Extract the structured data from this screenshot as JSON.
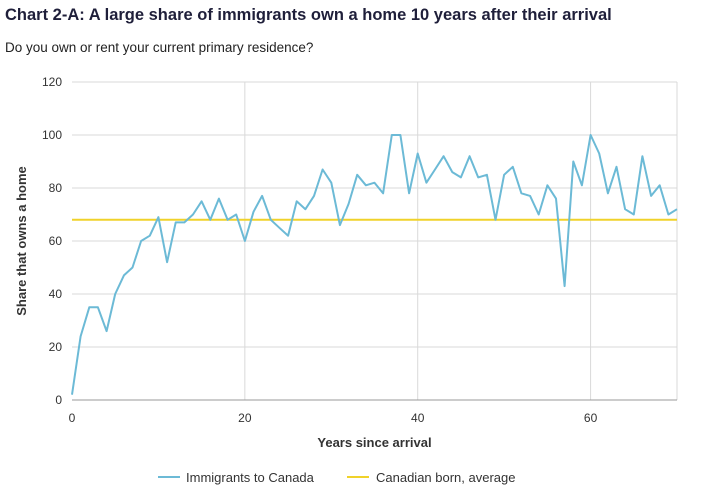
{
  "title": "Chart 2-A: A large share of immigrants own a home 10 years after their arrival",
  "subtitle": "Do you own or rent your current primary residence?",
  "colors": {
    "immigrants": "#6cbad6",
    "canadian": "#f0d22a",
    "grid": "#d9d9d9",
    "axis": "#999999"
  },
  "chart_data": {
    "type": "line",
    "xlabel": "Years since arrival",
    "ylabel": "Share that owns a home",
    "xlim": [
      0,
      70
    ],
    "ylim": [
      0,
      120
    ],
    "xticks": [
      "0",
      "20",
      "40",
      "60"
    ],
    "xtick_values": [
      0,
      20,
      40,
      60
    ],
    "yticks": [
      "0",
      "20",
      "40",
      "60",
      "80",
      "100",
      "120"
    ],
    "ytick_values": [
      0,
      20,
      40,
      60,
      80,
      100,
      120
    ],
    "grid": "vertical and horizontal",
    "legend_position": "bottom",
    "series": [
      {
        "name": "Immigrants to Canada",
        "color": "#6cbad6",
        "x": [
          0,
          1,
          2,
          3,
          4,
          5,
          6,
          7,
          8,
          9,
          10,
          11,
          12,
          13,
          14,
          15,
          16,
          17,
          18,
          19,
          20,
          21,
          22,
          23,
          24,
          25,
          26,
          27,
          28,
          29,
          30,
          31,
          32,
          33,
          34,
          35,
          36,
          37,
          38,
          39,
          40,
          41,
          42,
          43,
          44,
          45,
          46,
          47,
          48,
          49,
          50,
          51,
          52,
          53,
          54,
          55,
          56,
          57,
          58,
          59,
          60,
          61,
          62,
          63,
          64,
          65,
          66,
          67,
          68,
          69,
          70
        ],
        "values": [
          2,
          24,
          35,
          35,
          26,
          40,
          47,
          50,
          60,
          62,
          69,
          52,
          67,
          67,
          70,
          75,
          68,
          76,
          68,
          70,
          60,
          71,
          77,
          68,
          65,
          62,
          75,
          72,
          77,
          87,
          82,
          66,
          74,
          85,
          81,
          82,
          78,
          100,
          100,
          78,
          93,
          82,
          87,
          92,
          86,
          84,
          92,
          84,
          85,
          68,
          85,
          88,
          78,
          77,
          70,
          81,
          76,
          43,
          90,
          81,
          100,
          93,
          78,
          88,
          72,
          70,
          92,
          77,
          81,
          70,
          72
        ]
      },
      {
        "name": "Canadian born, average",
        "color": "#f0d22a",
        "constant": 68
      }
    ]
  }
}
